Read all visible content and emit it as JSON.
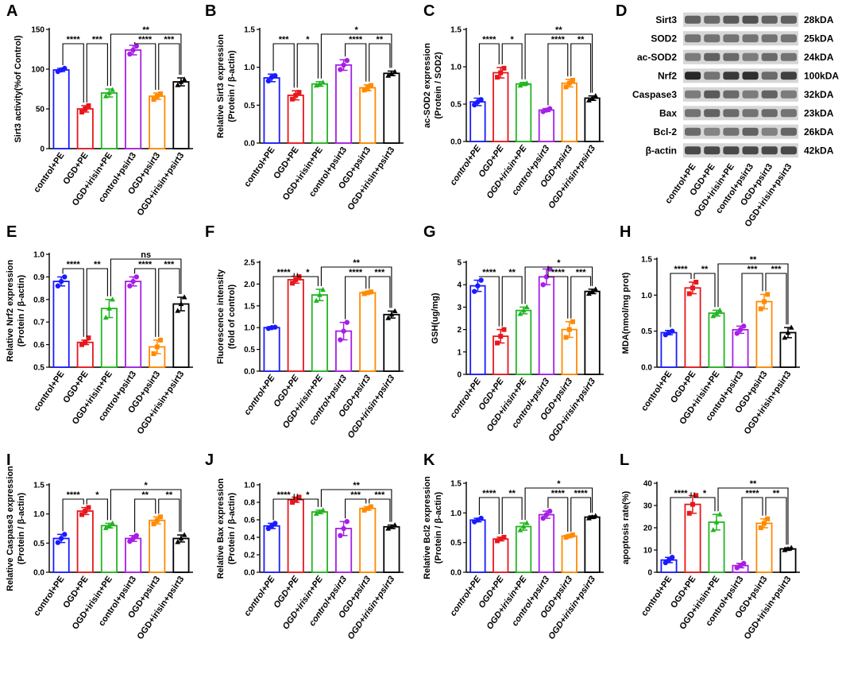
{
  "group_labels": [
    "control+PE",
    "OGD+PE",
    "OGD+irisin+PE",
    "control+psirt3",
    "OGD+psirt3",
    "OGD+irisin+psirt3"
  ],
  "group_colors": [
    "#1a1aff",
    "#e8171c",
    "#21b521",
    "#a61fe5",
    "#ff8a00",
    "#000000"
  ],
  "chart_data": [
    {
      "id": "A",
      "type": "bar",
      "ylabel": "Sirt3 activity(%of Control)",
      "ylim": [
        0,
        150
      ],
      "yticks": [
        0,
        50,
        100,
        150
      ],
      "tick_labels": [
        "0",
        "50",
        "100",
        "150"
      ],
      "values": [
        99,
        50,
        70,
        124,
        66,
        84
      ],
      "errors": [
        2,
        4,
        5,
        6,
        4,
        5
      ],
      "points": [
        [
          97,
          99,
          101
        ],
        [
          46,
          50,
          54
        ],
        [
          66,
          70,
          74
        ],
        [
          119,
          124,
          129
        ],
        [
          62,
          66,
          69
        ],
        [
          80,
          84,
          87
        ]
      ],
      "italic": false,
      "sig": [
        {
          "from": 0,
          "to": 1,
          "label": "****",
          "level": 0
        },
        {
          "from": 1,
          "to": 2,
          "label": "***",
          "level": 0
        },
        {
          "from": 2,
          "to": 5,
          "label": "**",
          "level": 1
        },
        {
          "from": 3,
          "to": 4,
          "label": "****",
          "level": 0
        },
        {
          "from": 4,
          "to": 5,
          "label": "***",
          "level": 0
        }
      ]
    },
    {
      "id": "B",
      "type": "bar",
      "ylabel": "Relative Sirt3 expression",
      "ylabel2": "(Protein / β-actin)",
      "ylim": [
        0,
        1.5
      ],
      "yticks": [
        0,
        0.5,
        1.0,
        1.5
      ],
      "tick_labels": [
        "0.0",
        "0.5",
        "1.0",
        "1.5"
      ],
      "values": [
        0.86,
        0.63,
        0.78,
        1.03,
        0.73,
        0.92
      ],
      "errors": [
        0.05,
        0.06,
        0.03,
        0.07,
        0.04,
        0.03
      ],
      "points": [
        [
          0.82,
          0.87,
          0.89
        ],
        [
          0.58,
          0.63,
          0.67
        ],
        [
          0.76,
          0.78,
          0.8
        ],
        [
          0.97,
          1.03,
          1.09
        ],
        [
          0.7,
          0.73,
          0.76
        ],
        [
          0.89,
          0.92,
          0.94
        ]
      ],
      "italic": false,
      "sig": [
        {
          "from": 0,
          "to": 1,
          "label": "***",
          "level": 0
        },
        {
          "from": 1,
          "to": 2,
          "label": "*",
          "level": 0
        },
        {
          "from": 2,
          "to": 5,
          "label": "*",
          "level": 1
        },
        {
          "from": 3,
          "to": 4,
          "label": "****",
          "level": 0
        },
        {
          "from": 4,
          "to": 5,
          "label": "**",
          "level": 0
        }
      ]
    },
    {
      "id": "C",
      "type": "bar",
      "ylabel": "ac-SOD2 expression",
      "ylabel2": "(Protein / SOD2)",
      "ylim": [
        0,
        1.5
      ],
      "yticks": [
        0,
        0.5,
        1.0,
        1.5
      ],
      "tick_labels": [
        "0.0",
        "0.5",
        "1.0",
        "1.5"
      ],
      "values": [
        0.53,
        0.92,
        0.77,
        0.42,
        0.78,
        0.58
      ],
      "errors": [
        0.05,
        0.07,
        0.02,
        0.02,
        0.05,
        0.03
      ],
      "points": [
        [
          0.49,
          0.53,
          0.56
        ],
        [
          0.86,
          0.92,
          0.98
        ],
        [
          0.75,
          0.77,
          0.78
        ],
        [
          0.4,
          0.42,
          0.44
        ],
        [
          0.73,
          0.78,
          0.82
        ],
        [
          0.55,
          0.58,
          0.61
        ]
      ],
      "italic": true,
      "sig": [
        {
          "from": 0,
          "to": 1,
          "label": "****",
          "level": 0
        },
        {
          "from": 1,
          "to": 2,
          "label": "*",
          "level": 0
        },
        {
          "from": 2,
          "to": 5,
          "label": "**",
          "level": 1
        },
        {
          "from": 3,
          "to": 4,
          "label": "****",
          "level": 0
        },
        {
          "from": 4,
          "to": 5,
          "label": "**",
          "level": 0
        }
      ]
    },
    {
      "id": "E",
      "type": "bar",
      "ylabel": "Relative Nrf2 expression",
      "ylabel2": "(Protein / β-actin)",
      "ylim": [
        0.5,
        1.0
      ],
      "yticks": [
        0.5,
        0.6,
        0.7,
        0.8,
        0.9,
        1.0
      ],
      "tick_labels": [
        "0.5",
        "0.6",
        "0.7",
        "0.8",
        "0.9",
        "1.0"
      ],
      "values": [
        0.88,
        0.61,
        0.76,
        0.88,
        0.59,
        0.78
      ],
      "errors": [
        0.02,
        0.01,
        0.04,
        0.02,
        0.03,
        0.03
      ],
      "points": [
        [
          0.86,
          0.88,
          0.9
        ],
        [
          0.6,
          0.61,
          0.63
        ],
        [
          0.72,
          0.76,
          0.8
        ],
        [
          0.86,
          0.88,
          0.9
        ],
        [
          0.56,
          0.59,
          0.62
        ],
        [
          0.75,
          0.78,
          0.81
        ]
      ],
      "italic": false,
      "sig": [
        {
          "from": 0,
          "to": 1,
          "label": "****",
          "level": 0
        },
        {
          "from": 1,
          "to": 2,
          "label": "**",
          "level": 0
        },
        {
          "from": 2,
          "to": 5,
          "label": "ns",
          "level": 1
        },
        {
          "from": 3,
          "to": 4,
          "label": "****",
          "level": 0
        },
        {
          "from": 4,
          "to": 5,
          "label": "***",
          "level": 0
        }
      ]
    },
    {
      "id": "F",
      "type": "bar",
      "ylabel": "Fluorescence intensity",
      "ylabel2": "(fold of control)",
      "ylim": [
        0,
        2.5
      ],
      "yticks": [
        0,
        0.5,
        1.0,
        1.5,
        2.0,
        2.5
      ],
      "tick_labels": [
        "0.0",
        "0.5",
        "1.0",
        "1.5",
        "2.0",
        "2.5"
      ],
      "values": [
        1.0,
        2.1,
        1.75,
        0.92,
        1.8,
        1.3
      ],
      "errors": [
        0.02,
        0.08,
        0.13,
        0.2,
        0.02,
        0.08
      ],
      "points": [
        [
          0.98,
          1.0,
          1.01
        ],
        [
          2.02,
          2.1,
          2.17
        ],
        [
          1.62,
          1.75,
          1.87
        ],
        [
          0.72,
          0.92,
          1.12
        ],
        [
          1.78,
          1.8,
          1.82
        ],
        [
          1.22,
          1.3,
          1.38
        ]
      ],
      "italic": true,
      "sig": [
        {
          "from": 0,
          "to": 1,
          "label": "****",
          "level": 0
        },
        {
          "from": 1,
          "to": 2,
          "label": "*",
          "level": 0
        },
        {
          "from": 2,
          "to": 5,
          "label": "**",
          "level": 1
        },
        {
          "from": 3,
          "to": 4,
          "label": "****",
          "level": 0
        },
        {
          "from": 4,
          "to": 5,
          "label": "***",
          "level": 0
        }
      ]
    },
    {
      "id": "G",
      "type": "bar",
      "ylabel": "GSH(ug/mg)",
      "ylim": [
        0,
        5
      ],
      "yticks": [
        0,
        1,
        2,
        3,
        4,
        5
      ],
      "tick_labels": [
        "0",
        "1",
        "2",
        "3",
        "4",
        "5"
      ],
      "values": [
        3.95,
        1.7,
        2.85,
        4.35,
        2.0,
        3.7
      ],
      "errors": [
        0.25,
        0.3,
        0.15,
        0.35,
        0.35,
        0.1
      ],
      "points": [
        [
          3.7,
          3.95,
          4.2
        ],
        [
          1.4,
          1.7,
          2.0
        ],
        [
          2.7,
          2.85,
          3.0
        ],
        [
          4.0,
          4.35,
          4.7
        ],
        [
          1.65,
          2.0,
          2.35
        ],
        [
          3.6,
          3.7,
          3.8
        ]
      ],
      "italic": true,
      "sig": [
        {
          "from": 0,
          "to": 1,
          "label": "****",
          "level": 0
        },
        {
          "from": 1,
          "to": 2,
          "label": "**",
          "level": 0
        },
        {
          "from": 2,
          "to": 5,
          "label": "*",
          "level": 1
        },
        {
          "from": 3,
          "to": 4,
          "label": "****",
          "level": 0
        },
        {
          "from": 4,
          "to": 5,
          "label": "***",
          "level": 0
        }
      ]
    },
    {
      "id": "H",
      "type": "bar",
      "ylabel": "MDA(nmol/mg prot)",
      "ylim": [
        0,
        1.5
      ],
      "yticks": [
        0,
        0.5,
        1.0,
        1.5
      ],
      "tick_labels": [
        "0.0",
        "0.5",
        "1.0",
        "1.5"
      ],
      "values": [
        0.48,
        1.1,
        0.75,
        0.52,
        0.91,
        0.48
      ],
      "errors": [
        0.03,
        0.08,
        0.04,
        0.05,
        0.1,
        0.07
      ],
      "points": [
        [
          0.45,
          0.48,
          0.5
        ],
        [
          1.02,
          1.1,
          1.18
        ],
        [
          0.71,
          0.75,
          0.79
        ],
        [
          0.47,
          0.52,
          0.57
        ],
        [
          0.81,
          0.91,
          1.01
        ],
        [
          0.41,
          0.48,
          0.55
        ]
      ],
      "italic": false,
      "sig": [
        {
          "from": 0,
          "to": 1,
          "label": "****",
          "level": 0
        },
        {
          "from": 1,
          "to": 2,
          "label": "**",
          "level": 0
        },
        {
          "from": 2,
          "to": 5,
          "label": "**",
          "level": 1
        },
        {
          "from": 3,
          "to": 4,
          "label": "***",
          "level": 0
        },
        {
          "from": 4,
          "to": 5,
          "label": "***",
          "level": 0
        }
      ]
    },
    {
      "id": "I",
      "type": "bar",
      "ylabel": "Relative Caspase3 expression",
      "ylabel2": "(Protein / β-actin)",
      "ylim": [
        0,
        1.5
      ],
      "yticks": [
        0,
        0.5,
        1.0,
        1.5
      ],
      "tick_labels": [
        "0.0",
        "0.5",
        "1.0",
        "1.5"
      ],
      "values": [
        0.58,
        1.05,
        0.8,
        0.58,
        0.89,
        0.58
      ],
      "errors": [
        0.07,
        0.06,
        0.04,
        0.05,
        0.06,
        0.06
      ],
      "points": [
        [
          0.51,
          0.58,
          0.65
        ],
        [
          0.99,
          1.05,
          1.11
        ],
        [
          0.76,
          0.8,
          0.84
        ],
        [
          0.53,
          0.58,
          0.63
        ],
        [
          0.83,
          0.89,
          0.95
        ],
        [
          0.52,
          0.58,
          0.64
        ]
      ],
      "italic": false,
      "sig": [
        {
          "from": 0,
          "to": 1,
          "label": "****",
          "level": 0
        },
        {
          "from": 1,
          "to": 2,
          "label": "*",
          "level": 0
        },
        {
          "from": 2,
          "to": 5,
          "label": "*",
          "level": 1
        },
        {
          "from": 3,
          "to": 4,
          "label": "**",
          "level": 0
        },
        {
          "from": 4,
          "to": 5,
          "label": "**",
          "level": 0
        }
      ]
    },
    {
      "id": "J",
      "type": "bar",
      "ylabel": "Relative Bax expression",
      "ylabel2": "(Protein / β-actin)",
      "ylim": [
        0,
        1.0
      ],
      "yticks": [
        0,
        0.2,
        0.4,
        0.6,
        0.8,
        1.0
      ],
      "tick_labels": [
        "0.0",
        "0.2",
        "0.4",
        "0.6",
        "0.8",
        "1.0"
      ],
      "values": [
        0.53,
        0.83,
        0.69,
        0.5,
        0.73,
        0.52
      ],
      "errors": [
        0.03,
        0.03,
        0.02,
        0.08,
        0.02,
        0.02
      ],
      "points": [
        [
          0.5,
          0.53,
          0.56
        ],
        [
          0.8,
          0.83,
          0.86
        ],
        [
          0.67,
          0.69,
          0.71
        ],
        [
          0.42,
          0.5,
          0.58
        ],
        [
          0.71,
          0.73,
          0.75
        ],
        [
          0.5,
          0.52,
          0.54
        ]
      ],
      "italic": true,
      "sig": [
        {
          "from": 0,
          "to": 1,
          "label": "****",
          "level": 0
        },
        {
          "from": 1,
          "to": 2,
          "label": "*",
          "level": 0
        },
        {
          "from": 2,
          "to": 5,
          "label": "**",
          "level": 1
        },
        {
          "from": 3,
          "to": 4,
          "label": "***",
          "level": 0
        },
        {
          "from": 4,
          "to": 5,
          "label": "***",
          "level": 0
        }
      ]
    },
    {
      "id": "K",
      "type": "bar",
      "ylabel": "Relative Bcl2 expression",
      "ylabel2": "(Protein / β-actin)",
      "ylim": [
        0,
        1.5
      ],
      "yticks": [
        0,
        0.5,
        1.0,
        1.5
      ],
      "tick_labels": [
        "0.0",
        "0.5",
        "1.0",
        "1.5"
      ],
      "values": [
        0.88,
        0.56,
        0.77,
        0.97,
        0.61,
        0.93
      ],
      "errors": [
        0.03,
        0.03,
        0.06,
        0.06,
        0.02,
        0.02
      ],
      "points": [
        [
          0.85,
          0.88,
          0.91
        ],
        [
          0.53,
          0.56,
          0.59
        ],
        [
          0.71,
          0.77,
          0.83
        ],
        [
          0.91,
          0.97,
          1.03
        ],
        [
          0.59,
          0.61,
          0.63
        ],
        [
          0.91,
          0.93,
          0.95
        ]
      ],
      "italic": true,
      "sig": [
        {
          "from": 0,
          "to": 1,
          "label": "****",
          "level": 0
        },
        {
          "from": 1,
          "to": 2,
          "label": "**",
          "level": 0
        },
        {
          "from": 2,
          "to": 5,
          "label": "*",
          "level": 1
        },
        {
          "from": 3,
          "to": 4,
          "label": "****",
          "level": 0
        },
        {
          "from": 4,
          "to": 5,
          "label": "****",
          "level": 0
        }
      ]
    },
    {
      "id": "L",
      "type": "bar",
      "ylabel": "apoptosis rate(%)",
      "ylim": [
        0,
        40
      ],
      "yticks": [
        0,
        10,
        20,
        30,
        40
      ],
      "tick_labels": [
        "0",
        "10",
        "20",
        "30",
        "40"
      ],
      "values": [
        5.5,
        30.5,
        22.5,
        3.0,
        22.0,
        10.5
      ],
      "errors": [
        1.2,
        4.0,
        3.5,
        1.0,
        2.0,
        0.5
      ],
      "points": [
        [
          4.3,
          5.5,
          6.7
        ],
        [
          26.5,
          30.5,
          34.5
        ],
        [
          19,
          22.5,
          26
        ],
        [
          2.0,
          3.0,
          4.0
        ],
        [
          20,
          22,
          24
        ],
        [
          10,
          10.5,
          11
        ]
      ],
      "italic": false,
      "sig": [
        {
          "from": 0,
          "to": 1,
          "label": "****",
          "level": 0
        },
        {
          "from": 1,
          "to": 2,
          "label": "*",
          "level": 0
        },
        {
          "from": 2,
          "to": 5,
          "label": "**",
          "level": 1
        },
        {
          "from": 3,
          "to": 4,
          "label": "****",
          "level": 0
        },
        {
          "from": 4,
          "to": 5,
          "label": "**",
          "level": 0
        }
      ]
    }
  ],
  "blot": {
    "id": "D",
    "proteins": [
      "Sirt3",
      "SOD2",
      "ac-SOD2",
      "Nrf2",
      "Caspase3",
      "Bax",
      "Bcl-2",
      "β-actin"
    ],
    "sizes": [
      "28kDA",
      "25kDA",
      "24kDA",
      "100kDA",
      "32kDA",
      "23kDA",
      "26kDA",
      "42kDA"
    ],
    "intensities": [
      [
        0.6,
        0.55,
        0.65,
        0.7,
        0.6,
        0.62
      ],
      [
        0.5,
        0.5,
        0.5,
        0.5,
        0.5,
        0.5
      ],
      [
        0.45,
        0.6,
        0.55,
        0.45,
        0.55,
        0.5
      ],
      [
        0.95,
        0.5,
        0.85,
        0.9,
        0.55,
        0.8
      ],
      [
        0.45,
        0.65,
        0.55,
        0.45,
        0.6,
        0.45
      ],
      [
        0.5,
        0.6,
        0.55,
        0.5,
        0.55,
        0.5
      ],
      [
        0.55,
        0.4,
        0.5,
        0.6,
        0.42,
        0.58
      ],
      [
        0.75,
        0.75,
        0.75,
        0.75,
        0.75,
        0.75
      ]
    ]
  }
}
